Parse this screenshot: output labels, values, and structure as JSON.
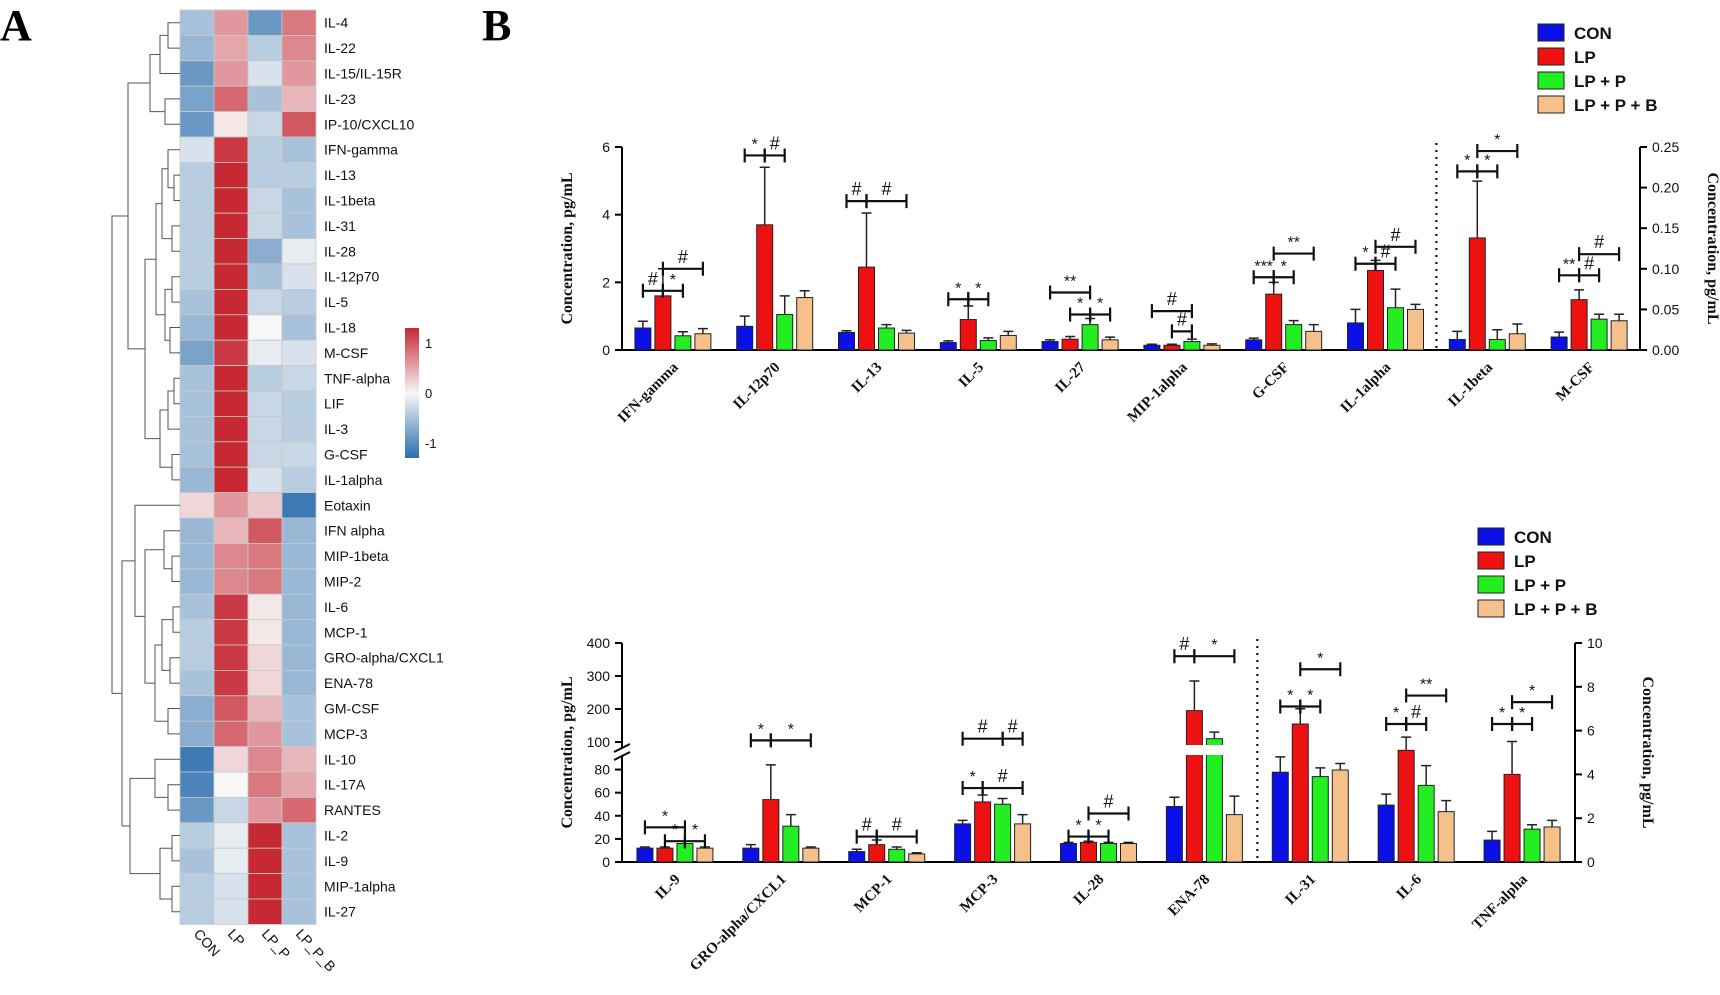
{
  "panel_labels": {
    "a": "A",
    "b": "B"
  },
  "series_colors": {
    "CON": "#0a10e6",
    "LP": "#ee1111",
    "LP + P": "#22ee22",
    "LP + P + B": "#f5c08a"
  },
  "chart_data": [
    {
      "type": "heatmap",
      "rows": [
        "IL-4",
        "IL-22",
        "IL-15/IL-15R",
        "IL-23",
        "IP-10/CXCL10",
        "IFN-gamma",
        "IL-13",
        "IL-1beta",
        "IL-31",
        "IL-28",
        "IL-12p70",
        "IL-5",
        "IL-18",
        "M-CSF",
        "TNF-alpha",
        "LIF",
        "IL-3",
        "G-CSF",
        "IL-1alpha",
        "Eotaxin",
        "IFN alpha",
        "MIP-1beta",
        "MIP-2",
        "IL-6",
        "MCP-1",
        "GRO-alpha/CXCL1",
        "ENA-78",
        "GM-CSF",
        "MCP-3",
        "IL-10",
        "IL-17A",
        "RANTES",
        "IL-2",
        "IL-9",
        "MIP-1alpha",
        "IL-27"
      ],
      "columns": [
        "CON",
        "LP",
        "LP_P",
        "LP_P_B"
      ],
      "values": [
        [
          -0.5,
          0.6,
          -0.9,
          0.8
        ],
        [
          -0.6,
          0.5,
          -0.4,
          0.7
        ],
        [
          -0.9,
          0.6,
          -0.2,
          0.6
        ],
        [
          -0.8,
          0.9,
          -0.5,
          0.4
        ],
        [
          -0.9,
          0.1,
          -0.3,
          1.0
        ],
        [
          -0.2,
          1.2,
          -0.4,
          -0.5
        ],
        [
          -0.4,
          1.3,
          -0.4,
          -0.4
        ],
        [
          -0.4,
          1.3,
          -0.3,
          -0.5
        ],
        [
          -0.4,
          1.3,
          -0.3,
          -0.5
        ],
        [
          -0.4,
          1.3,
          -0.7,
          -0.1
        ],
        [
          -0.4,
          1.3,
          -0.5,
          -0.2
        ],
        [
          -0.5,
          1.3,
          -0.3,
          -0.4
        ],
        [
          -0.6,
          1.3,
          0.0,
          -0.5
        ],
        [
          -0.8,
          1.2,
          -0.1,
          -0.2
        ],
        [
          -0.5,
          1.3,
          -0.4,
          -0.3
        ],
        [
          -0.5,
          1.3,
          -0.3,
          -0.4
        ],
        [
          -0.5,
          1.3,
          -0.3,
          -0.4
        ],
        [
          -0.5,
          1.3,
          -0.3,
          -0.3
        ],
        [
          -0.6,
          1.3,
          -0.2,
          -0.4
        ],
        [
          0.2,
          0.6,
          0.3,
          -1.2
        ],
        [
          -0.6,
          0.4,
          1.0,
          -0.6
        ],
        [
          -0.6,
          0.7,
          0.8,
          -0.6
        ],
        [
          -0.6,
          0.7,
          0.8,
          -0.6
        ],
        [
          -0.5,
          1.2,
          0.1,
          -0.6
        ],
        [
          -0.4,
          1.2,
          0.1,
          -0.6
        ],
        [
          -0.4,
          1.2,
          0.2,
          -0.6
        ],
        [
          -0.5,
          1.2,
          0.2,
          -0.6
        ],
        [
          -0.7,
          1.0,
          0.4,
          -0.5
        ],
        [
          -0.7,
          0.9,
          0.6,
          -0.5
        ],
        [
          -1.2,
          0.2,
          0.7,
          0.4
        ],
        [
          -1.1,
          0.0,
          0.8,
          0.5
        ],
        [
          -0.9,
          -0.3,
          0.6,
          0.9
        ],
        [
          -0.4,
          -0.1,
          1.4,
          -0.5
        ],
        [
          -0.5,
          -0.1,
          1.4,
          -0.5
        ],
        [
          -0.4,
          -0.2,
          1.4,
          -0.5
        ],
        [
          -0.4,
          -0.2,
          1.4,
          -0.5
        ]
      ],
      "legend_ticks": [
        "1",
        "0",
        "-1"
      ],
      "range": [
        -1.3,
        1.3
      ]
    },
    {
      "type": "bar",
      "series": [
        "CON",
        "LP",
        "LP + P",
        "LP + P + B"
      ],
      "left_categories": [
        "IFN-gamma",
        "IL-12p70",
        "IL-13",
        "IL-5",
        "IL-27",
        "MIP-1alpha",
        "G-CSF",
        "IL-1alpha"
      ],
      "right_categories": [
        "IL-1beta",
        "M-CSF"
      ],
      "ylabel_left": "Concentration, pg/mL",
      "ylabel_right": "Concentration, pg/mL",
      "ylim_left": [
        0,
        6
      ],
      "ylim_right": [
        0,
        0.25
      ],
      "yticks_left": [
        "0",
        "2",
        "4",
        "6"
      ],
      "yticks_right": [
        "0.00",
        "0.05",
        "0.10",
        "0.15",
        "0.20",
        "0.25"
      ],
      "values": [
        [
          0.65,
          1.6,
          0.42,
          0.48
        ],
        [
          0.7,
          3.7,
          1.05,
          1.55
        ],
        [
          0.52,
          2.45,
          0.65,
          0.5
        ],
        [
          0.22,
          0.9,
          0.28,
          0.43
        ],
        [
          0.25,
          0.32,
          0.75,
          0.3
        ],
        [
          0.14,
          0.14,
          0.25,
          0.14
        ],
        [
          0.3,
          1.65,
          0.75,
          0.55
        ],
        [
          0.8,
          2.35,
          1.25,
          1.2
        ],
        [
          0.013,
          0.138,
          0.013,
          0.02
        ],
        [
          0.016,
          0.062,
          0.038,
          0.036
        ]
      ],
      "errors": [
        [
          0.2,
          0.8,
          0.12,
          0.15
        ],
        [
          0.3,
          1.7,
          0.55,
          0.2
        ],
        [
          0.05,
          1.6,
          0.1,
          0.08
        ],
        [
          0.05,
          0.4,
          0.08,
          0.12
        ],
        [
          0.05,
          0.08,
          0.18,
          0.08
        ],
        [
          0.03,
          0.03,
          0.07,
          0.04
        ],
        [
          0.05,
          0.35,
          0.12,
          0.2
        ],
        [
          0.4,
          0.3,
          0.55,
          0.15
        ],
        [
          0.01,
          0.07,
          0.012,
          0.012
        ],
        [
          0.006,
          0.012,
          0.006,
          0.008
        ]
      ],
      "annotations": [
        {
          "cat": 0,
          "from": 0,
          "to": 1,
          "h": 1.75,
          "label": "#"
        },
        {
          "cat": 0,
          "from": 1,
          "to": 2,
          "h": 1.75,
          "label": "*"
        },
        {
          "cat": 0,
          "from": 1,
          "to": 3,
          "h": 2.4,
          "label": "#"
        },
        {
          "cat": 1,
          "from": 0,
          "to": 1,
          "h": 5.75,
          "label": "*"
        },
        {
          "cat": 1,
          "from": 1,
          "to": 2,
          "h": 5.75,
          "label": "#"
        },
        {
          "cat": 2,
          "from": 0,
          "to": 1,
          "h": 4.4,
          "label": "#"
        },
        {
          "cat": 2,
          "from": 1,
          "to": 3,
          "h": 4.4,
          "label": "#"
        },
        {
          "cat": 3,
          "from": 0,
          "to": 1,
          "h": 1.5,
          "label": "*"
        },
        {
          "cat": 3,
          "from": 1,
          "to": 2,
          "h": 1.5,
          "label": "*"
        },
        {
          "cat": 4,
          "from": 0,
          "to": 2,
          "h": 1.7,
          "label": "**"
        },
        {
          "cat": 4,
          "from": 1,
          "to": 2,
          "h": 1.05,
          "label": "*"
        },
        {
          "cat": 4,
          "from": 2,
          "to": 3,
          "h": 1.05,
          "label": "*"
        },
        {
          "cat": 5,
          "from": 0,
          "to": 2,
          "h": 1.15,
          "label": "#"
        },
        {
          "cat": 5,
          "from": 1,
          "to": 2,
          "h": 0.55,
          "label": "#"
        },
        {
          "cat": 6,
          "from": 0,
          "to": 1,
          "h": 2.15,
          "label": "***"
        },
        {
          "cat": 6,
          "from": 1,
          "to": 2,
          "h": 2.15,
          "label": "*"
        },
        {
          "cat": 6,
          "from": 1,
          "to": 3,
          "h": 2.85,
          "label": "**"
        },
        {
          "cat": 7,
          "from": 0,
          "to": 1,
          "h": 2.55,
          "label": "*"
        },
        {
          "cat": 7,
          "from": 1,
          "to": 2,
          "h": 2.55,
          "label": "#"
        },
        {
          "cat": 7,
          "from": 1,
          "to": 3,
          "h": 3.05,
          "label": "#"
        },
        {
          "cat": 8,
          "from": 0,
          "to": 1,
          "h": 0.22,
          "label": "*"
        },
        {
          "cat": 8,
          "from": 1,
          "to": 2,
          "h": 0.22,
          "label": "*"
        },
        {
          "cat": 8,
          "from": 1,
          "to": 3,
          "h": 0.245,
          "label": "*"
        },
        {
          "cat": 9,
          "from": 0,
          "to": 1,
          "h": 0.092,
          "label": "**"
        },
        {
          "cat": 9,
          "from": 1,
          "to": 2,
          "h": 0.092,
          "label": "#"
        },
        {
          "cat": 9,
          "from": 1,
          "to": 3,
          "h": 0.118,
          "label": "#"
        }
      ]
    },
    {
      "type": "bar",
      "series": [
        "CON",
        "LP",
        "LP + P",
        "LP + P + B"
      ],
      "left_categories": [
        "IL-9",
        "GRO-alpha/CXCL1",
        "MCP-1",
        "MCP-3",
        "IL-28",
        "ENA-78"
      ],
      "right_categories": [
        "IL-31",
        "IL-6",
        "TNF-alpha"
      ],
      "ylabel_left": "Concentration, pg/mL",
      "ylabel_right": "Concentration, pg/mL",
      "y_break": [
        90,
        100
      ],
      "ylim_left": [
        0,
        400
      ],
      "ylim_right": [
        0,
        10
      ],
      "yticks_left_low": [
        "0",
        "20",
        "40",
        "60",
        "80"
      ],
      "yticks_left_high": [
        "100",
        "200",
        "300",
        "400"
      ],
      "yticks_right": [
        "0",
        "2",
        "4",
        "6",
        "8",
        "10"
      ],
      "values": [
        [
          12,
          12,
          16,
          12
        ],
        [
          12,
          54,
          31,
          12
        ],
        [
          9,
          15,
          11,
          7
        ],
        [
          33,
          52,
          50,
          33
        ],
        [
          16,
          17,
          16,
          16
        ],
        [
          48,
          195,
          110,
          41
        ],
        [
          4.1,
          6.3,
          3.9,
          4.2
        ],
        [
          2.6,
          5.1,
          3.5,
          2.3
        ],
        [
          1.0,
          4.0,
          1.5,
          1.6
        ]
      ],
      "errors": [
        [
          1,
          1,
          2,
          1
        ],
        [
          3,
          30,
          10,
          1
        ],
        [
          2,
          4,
          2,
          1
        ],
        [
          3,
          6,
          5,
          8
        ],
        [
          1,
          1,
          1,
          1
        ],
        [
          8,
          90,
          20,
          16
        ],
        [
          0.7,
          0.7,
          0.4,
          0.3
        ],
        [
          0.5,
          0.6,
          0.9,
          0.5
        ],
        [
          0.4,
          1.5,
          0.2,
          0.3
        ]
      ],
      "annotations": [
        {
          "cat": 0,
          "from": 0,
          "to": 2,
          "h": 30,
          "label": "*"
        },
        {
          "cat": 0,
          "from": 1,
          "to": 2,
          "h": 18,
          "label": "*"
        },
        {
          "cat": 0,
          "from": 2,
          "to": 3,
          "h": 18,
          "label": "*"
        },
        {
          "cat": 1,
          "from": 0,
          "to": 1,
          "h": 105,
          "label": "*"
        },
        {
          "cat": 1,
          "from": 1,
          "to": 3,
          "h": 105,
          "label": "*"
        },
        {
          "cat": 2,
          "from": 0,
          "to": 1,
          "h": 22,
          "label": "#"
        },
        {
          "cat": 2,
          "from": 1,
          "to": 3,
          "h": 22,
          "label": "#"
        },
        {
          "cat": 3,
          "from": 0,
          "to": 2,
          "h": 110,
          "label": "#"
        },
        {
          "cat": 3,
          "from": 2,
          "to": 3,
          "h": 110,
          "label": "#"
        },
        {
          "cat": 3,
          "from": 0,
          "to": 1,
          "h": 64,
          "label": "*"
        },
        {
          "cat": 3,
          "from": 1,
          "to": 3,
          "h": 64,
          "label": "#"
        },
        {
          "cat": 4,
          "from": 0,
          "to": 1,
          "h": 22,
          "label": "*"
        },
        {
          "cat": 4,
          "from": 1,
          "to": 2,
          "h": 22,
          "label": "*"
        },
        {
          "cat": 4,
          "from": 1,
          "to": 3,
          "h": 42,
          "label": "#"
        },
        {
          "cat": 5,
          "from": 0,
          "to": 1,
          "h": 360,
          "label": "#"
        },
        {
          "cat": 5,
          "from": 1,
          "to": 3,
          "h": 360,
          "label": "*"
        },
        {
          "cat": 6,
          "from": 0,
          "to": 1,
          "h": 7.1,
          "label": "*"
        },
        {
          "cat": 6,
          "from": 1,
          "to": 2,
          "h": 7.1,
          "label": "*"
        },
        {
          "cat": 6,
          "from": 1,
          "to": 3,
          "h": 8.8,
          "label": "*"
        },
        {
          "cat": 7,
          "from": 0,
          "to": 1,
          "h": 6.3,
          "label": "*"
        },
        {
          "cat": 7,
          "from": 1,
          "to": 2,
          "h": 6.3,
          "label": "#"
        },
        {
          "cat": 7,
          "from": 1,
          "to": 3,
          "h": 7.6,
          "label": "**"
        },
        {
          "cat": 8,
          "from": 0,
          "to": 1,
          "h": 6.3,
          "label": "*"
        },
        {
          "cat": 8,
          "from": 1,
          "to": 2,
          "h": 6.3,
          "label": "*"
        },
        {
          "cat": 8,
          "from": 1,
          "to": 3,
          "h": 7.3,
          "label": "*"
        }
      ]
    }
  ]
}
